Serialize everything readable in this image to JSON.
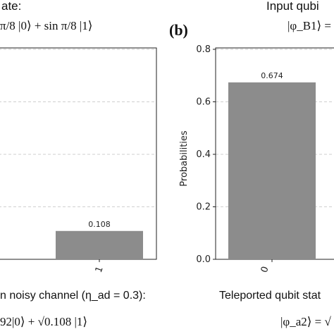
{
  "figure": {
    "left_panel": {
      "top_caption": "ate:",
      "top_state": "π/8 |0⟩ + sin π/8 |1⟩",
      "bottom_caption": "n noisy channel (η_ad = 0.3):",
      "bottom_state": "92|0⟩ + √0.108 |1⟩"
    },
    "right_panel": {
      "label": "(b)",
      "top_caption": "Input qubi",
      "top_state": "|φ_B1⟩ =",
      "bottom_caption": "Teleported qubit stat",
      "bottom_state": "|φ_a2⟩ = √"
    }
  },
  "chart_data": [
    {
      "type": "bar",
      "panel": "left",
      "categories": [
        "1"
      ],
      "values": [
        0.108
      ],
      "data_labels": [
        "0.108"
      ],
      "ylabel": "",
      "ylim": [
        0,
        0.8
      ],
      "grid": "horizontal dashed",
      "bar_color": "#8c8c8c"
    },
    {
      "type": "bar",
      "panel": "right",
      "categories": [
        "0"
      ],
      "values": [
        0.674
      ],
      "data_labels": [
        "0.674"
      ],
      "ylabel": "Probabilities",
      "yticks": [
        "0.0",
        "0.2",
        "0.4",
        "0.6",
        "0.8"
      ],
      "ylim": [
        0,
        0.8
      ],
      "grid": "horizontal dashed",
      "bar_color": "#8c8c8c"
    }
  ]
}
